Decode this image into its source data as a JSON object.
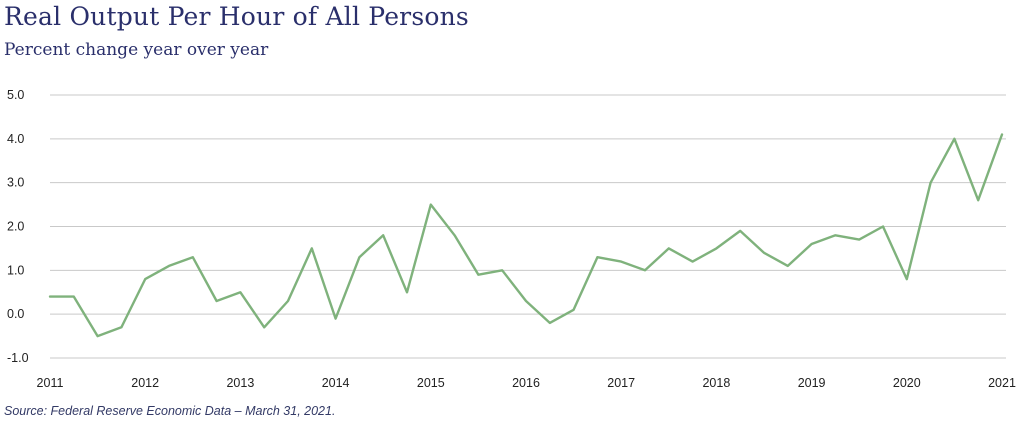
{
  "header": {
    "title": "Real Output Per Hour of All Persons",
    "subtitle": "Percent change year over year"
  },
  "footer": {
    "source": "Source: Federal Reserve Economic Data – March 31, 2021."
  },
  "colors": {
    "line": "#7fb27c",
    "title": "#2a2f6b",
    "grid": "#c9c9c9"
  },
  "chart_data": {
    "type": "line",
    "title": "Real Output Per Hour of All Persons",
    "subtitle": "Percent change year over year",
    "xlabel": "",
    "ylabel": "",
    "xlim": [
      2011,
      2021
    ],
    "ylim": [
      -1.0,
      5.0
    ],
    "grid": true,
    "y_ticks": [
      "5.0",
      "4.0",
      "3.0",
      "2.0",
      "1.0",
      "0.0",
      "-1.0"
    ],
    "x_ticks": [
      "2011",
      "2012",
      "2013",
      "2014",
      "2015",
      "2016",
      "2017",
      "2018",
      "2019",
      "2020",
      "2021"
    ],
    "series": [
      {
        "name": "Real Output Per Hour of All Persons",
        "x": [
          2011.0,
          2011.25,
          2011.5,
          2011.75,
          2012.0,
          2012.25,
          2012.5,
          2012.75,
          2013.0,
          2013.25,
          2013.5,
          2013.75,
          2014.0,
          2014.25,
          2014.5,
          2014.75,
          2015.0,
          2015.25,
          2015.5,
          2015.75,
          2016.0,
          2016.25,
          2016.5,
          2016.75,
          2017.0,
          2017.25,
          2017.5,
          2017.75,
          2018.0,
          2018.25,
          2018.5,
          2018.75,
          2019.0,
          2019.25,
          2019.5,
          2019.75,
          2020.0,
          2020.25,
          2020.5,
          2020.75,
          2021.0
        ],
        "values": [
          0.4,
          0.4,
          -0.5,
          -0.3,
          0.8,
          1.1,
          1.3,
          0.3,
          0.5,
          -0.3,
          0.3,
          1.5,
          -0.1,
          1.3,
          1.8,
          0.5,
          2.5,
          1.8,
          0.9,
          1.0,
          0.3,
          -0.2,
          0.1,
          1.3,
          1.2,
          1.0,
          1.5,
          1.2,
          1.5,
          1.9,
          1.4,
          1.1,
          1.6,
          1.8,
          1.7,
          2.0,
          0.8,
          3.0,
          4.0,
          2.6,
          4.1
        ]
      }
    ]
  }
}
